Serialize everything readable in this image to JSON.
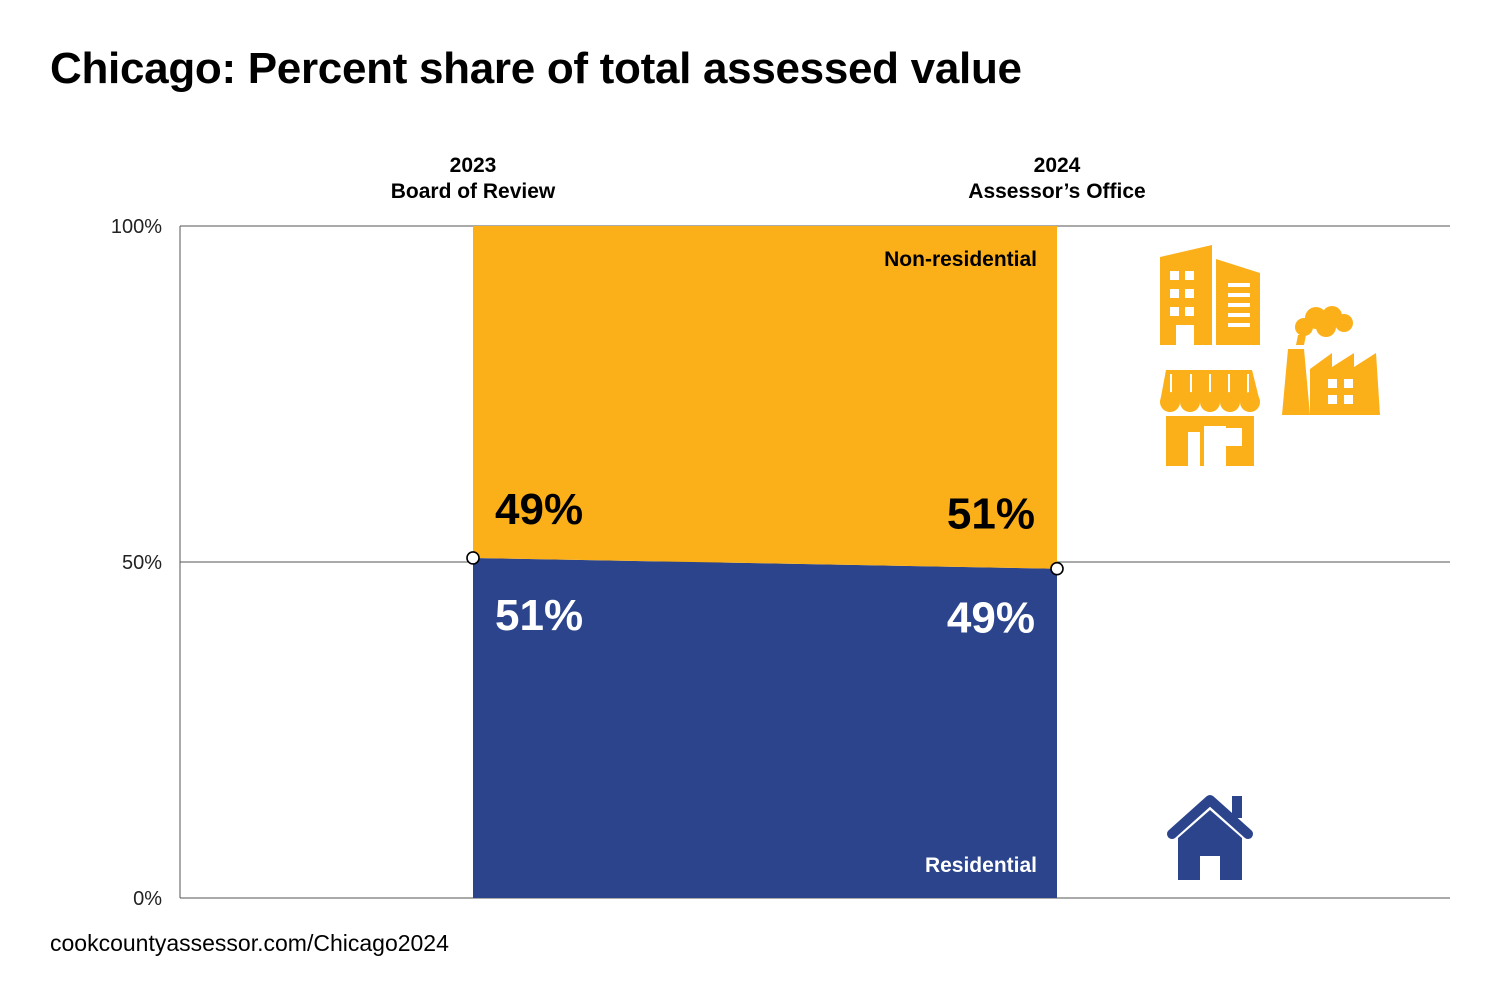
{
  "title": "Chicago: Percent share of total assessed value",
  "source": "cookcountyassessor.com/Chicago2024",
  "colors": {
    "residential": "#2b448c",
    "non_residential": "#fbb019",
    "grid": "#555555"
  },
  "icons": {
    "non_residential": [
      "office-building-icon",
      "factory-icon",
      "storefront-icon"
    ],
    "residential": [
      "house-icon"
    ]
  },
  "chart_data": {
    "type": "area",
    "title": "Chicago: Percent share of total assessed value",
    "categories": [
      {
        "year": "2023",
        "label": "Board of Review"
      },
      {
        "year": "2024",
        "label": "Assessor’s Office"
      }
    ],
    "series": [
      {
        "name": "Residential",
        "values": [
          51,
          49
        ],
        "exact_values": [
          50.6,
          49.0
        ],
        "value_labels": [
          "51%",
          "49%"
        ]
      },
      {
        "name": "Non-residential",
        "values": [
          49,
          51
        ],
        "exact_values": [
          49.4,
          51.0
        ],
        "value_labels": [
          "49%",
          "51%"
        ]
      }
    ],
    "stacked": true,
    "ylim": [
      0,
      100
    ],
    "yticks": [
      {
        "value": 100,
        "label": "100%"
      },
      {
        "value": 50,
        "label": "50%"
      },
      {
        "value": 0,
        "label": "0%"
      }
    ],
    "grid": true,
    "legend": "none"
  }
}
